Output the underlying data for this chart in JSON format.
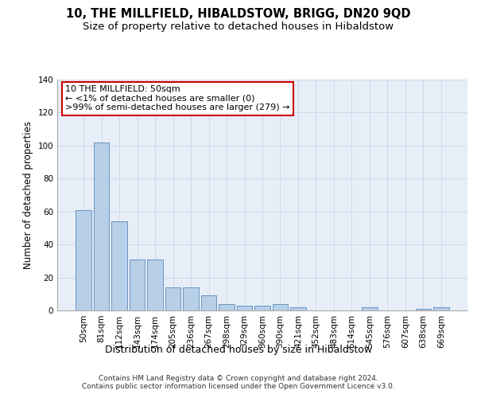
{
  "title": "10, THE MILLFIELD, HIBALDSTOW, BRIGG, DN20 9QD",
  "subtitle": "Size of property relative to detached houses in Hibaldstow",
  "xlabel": "Distribution of detached houses by size in Hibaldstow",
  "ylabel": "Number of detached properties",
  "categories": [
    "50sqm",
    "81sqm",
    "112sqm",
    "143sqm",
    "174sqm",
    "205sqm",
    "236sqm",
    "267sqm",
    "298sqm",
    "329sqm",
    "360sqm",
    "390sqm",
    "421sqm",
    "452sqm",
    "483sqm",
    "514sqm",
    "545sqm",
    "576sqm",
    "607sqm",
    "638sqm",
    "669sqm"
  ],
  "values": [
    61,
    102,
    54,
    31,
    31,
    14,
    14,
    9,
    4,
    3,
    3,
    4,
    2,
    0,
    0,
    0,
    2,
    0,
    0,
    1,
    2
  ],
  "bar_color": "#b8cfe8",
  "bar_edge_color": "#5b8ab8",
  "annotation_line1": "10 THE MILLFIELD: 50sqm",
  "annotation_line2": "← <1% of detached houses are smaller (0)",
  "annotation_line3": ">99% of semi-detached houses are larger (279) →",
  "annotation_box_color": "#ffffff",
  "annotation_box_edge_color": "#cc0000",
  "ylim": [
    0,
    140
  ],
  "yticks": [
    0,
    20,
    40,
    60,
    80,
    100,
    120,
    140
  ],
  "grid_color": "#d0d8e8",
  "bg_color": "#e8eef8",
  "footer": "Contains HM Land Registry data © Crown copyright and database right 2024.\nContains public sector information licensed under the Open Government Licence v3.0.",
  "title_fontsize": 10.5,
  "subtitle_fontsize": 9.5,
  "xlabel_fontsize": 9,
  "ylabel_fontsize": 8.5,
  "tick_fontsize": 7.5,
  "annotation_fontsize": 8,
  "footer_fontsize": 6.5
}
